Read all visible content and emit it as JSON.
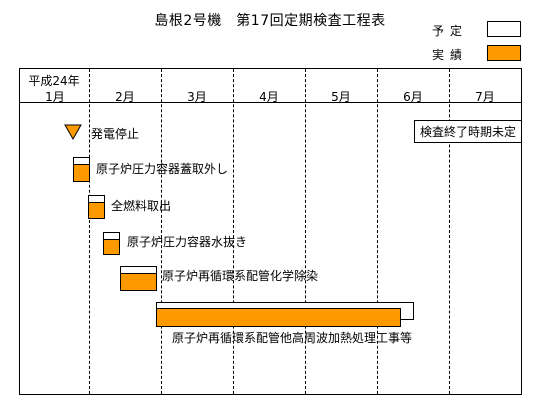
{
  "title": "島根2号機　第17回定期検査工程表",
  "legend": {
    "plan_label": "予定",
    "actual_label": "実績",
    "plan_color": "#ffffff",
    "actual_color": "#ff9900"
  },
  "year_label": "平成24年",
  "months": [
    "1月",
    "2月",
    "3月",
    "4月",
    "5月",
    "6月",
    "7月"
  ],
  "note": "検査終了時期未定",
  "milestone": {
    "label": "発電停止",
    "icon": "inverted-triangle-icon"
  },
  "items": [
    {
      "label": "原子炉圧力容器蓋取外し"
    },
    {
      "label": "全燃料取出"
    },
    {
      "label": "原子炉圧力容器水抜き"
    },
    {
      "label": "原子炉再循環系配管化学除染"
    },
    {
      "label": "原子炉再循環系配管他高周波加熱処理工事等"
    }
  ]
}
